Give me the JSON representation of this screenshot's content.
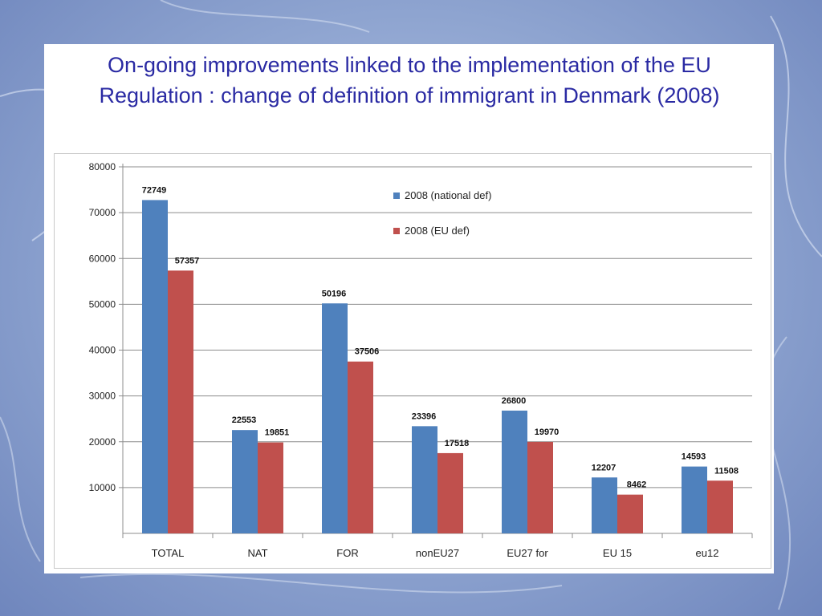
{
  "slide": {
    "title": "On-going improvements linked to the implementation of the EU Regulation : change of definition of immigrant in Denmark (2008)"
  },
  "chart_data": {
    "type": "bar",
    "title": "",
    "xlabel": "",
    "ylabel": "",
    "ylim": [
      0,
      80000
    ],
    "yticks": [
      10000,
      20000,
      30000,
      40000,
      50000,
      60000,
      70000,
      80000
    ],
    "grid": true,
    "legend_position": "top-right",
    "categories": [
      "TOTAL",
      "NAT",
      "FOR",
      "nonEU27",
      "EU27 for",
      "EU 15",
      "eu12"
    ],
    "series": [
      {
        "name": "2008 (national def)",
        "color": "#4f81bd",
        "values": [
          72749,
          22553,
          50196,
          23396,
          26800,
          12207,
          14593
        ]
      },
      {
        "name": "2008 (EU def)",
        "color": "#c0504d",
        "values": [
          57357,
          19851,
          37506,
          17518,
          19970,
          8462,
          11508
        ]
      }
    ]
  }
}
